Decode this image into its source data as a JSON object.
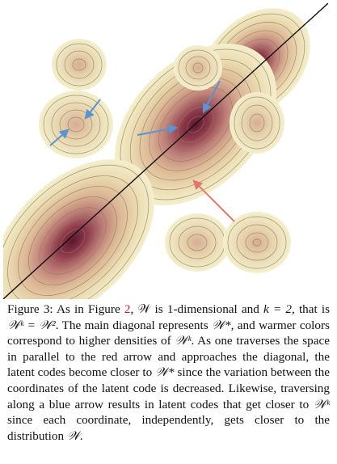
{
  "figure": {
    "colors": {
      "low_density": "#f4f1cf",
      "mid_density": "#d9b596",
      "high_density": "#6e1d36",
      "contour": "#8a8150",
      "diagonal": "#111111",
      "red_arrow": "#e4776b",
      "blue_arrow": "#5b94cf"
    }
  },
  "caption": {
    "label": "Figure 3:",
    "p1": "As in Figure",
    "ref": "2",
    "p2": ", 𝒲 is 1-dimensional and ",
    "k_eq": "k = 2",
    "p3": ", that is ",
    "wk_eq": "𝒲ᵏ = 𝒲²",
    "p4": ". The main diagonal represents ",
    "wstar": "𝒲*",
    "p5": ", and warmer colors correspond to higher densities of ",
    "wk": "𝒲ᵏ",
    "p6": ". As one traverses the space in parallel to the red arrow and approaches the diagonal, the latent codes become closer to ",
    "wstar2": "𝒲*",
    "p7": " since the variation between the coordinates of the latent code is decreased. Likewise, traversing along a blue arrow results in latent codes that get closer to ",
    "wk2": "𝒲ᵏ",
    "p8": " since each coordinate, independently, gets closer to the distribution ",
    "w_end": "𝒲",
    "p9": "."
  }
}
